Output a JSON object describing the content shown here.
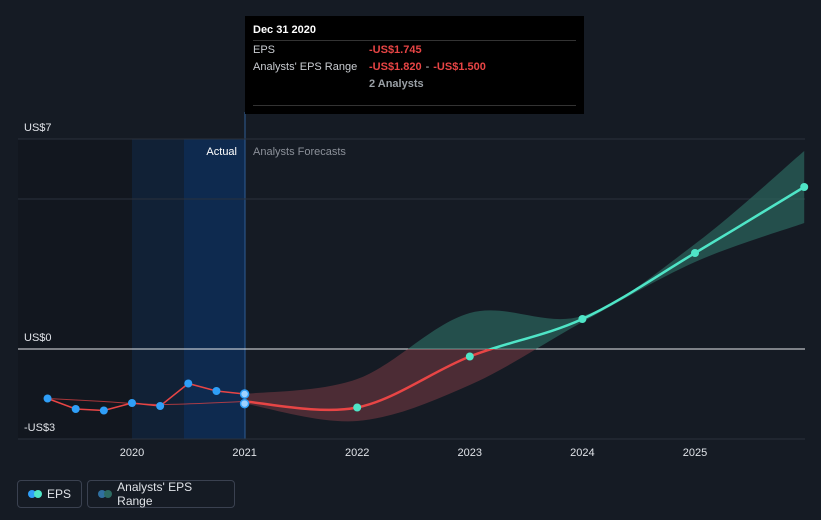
{
  "tooltip": {
    "date": "Dec 31 2020",
    "eps_label": "EPS",
    "eps_value": "-US$1.745",
    "range_label": "Analysts' EPS Range",
    "range_low": "-US$1.820",
    "range_sep": "-",
    "range_high": "-US$1.500",
    "analysts": "2 Analysts"
  },
  "labels": {
    "actual": "Actual",
    "forecast": "Analysts Forecasts"
  },
  "legend": {
    "eps": "EPS",
    "range": "Analysts' EPS Range"
  },
  "colors": {
    "background": "#151b24",
    "eps_actual": "#2f9ff8",
    "eps_past_line": "#e84545",
    "eps_forecast_negative": "#e84545",
    "eps_forecast_positive": "#4fe5c7",
    "range_negative": "#7a3a44",
    "range_positive": "#2d6b62",
    "highlight": "#0e2a4f"
  },
  "chart_data": {
    "type": "line",
    "title": "",
    "y_ticks": [
      {
        "value": 7,
        "label": "US$7"
      },
      {
        "value": 0,
        "label": "US$0"
      },
      {
        "value": -3,
        "label": "-US$3"
      }
    ],
    "ylim": [
      -3,
      7
    ],
    "xlim": [
      2019.1,
      2025.97
    ],
    "x_ticks": [
      {
        "value": 2020,
        "label": "2020"
      },
      {
        "value": 2021,
        "label": "2021"
      },
      {
        "value": 2022,
        "label": "2022"
      },
      {
        "value": 2023,
        "label": "2023"
      },
      {
        "value": 2024,
        "label": "2024"
      },
      {
        "value": 2025,
        "label": "2025"
      }
    ],
    "actual_eps": {
      "name": "EPS",
      "points": [
        {
          "x": 2019.25,
          "y": -1.65
        },
        {
          "x": 2019.5,
          "y": -2.0
        },
        {
          "x": 2019.75,
          "y": -2.05
        },
        {
          "x": 2020.0,
          "y": -1.8
        },
        {
          "x": 2020.25,
          "y": -1.9
        },
        {
          "x": 2020.5,
          "y": -1.15
        },
        {
          "x": 2020.75,
          "y": -1.4
        },
        {
          "x": 2021.0,
          "y": -1.5
        },
        {
          "x": 2021.0,
          "y": -1.82
        }
      ]
    },
    "past_estimate_line": [
      {
        "x": 2019.25,
        "y": -1.65
      },
      {
        "x": 2019.75,
        "y": -1.75
      },
      {
        "x": 2020.25,
        "y": -1.85
      },
      {
        "x": 2021.0,
        "y": -1.75
      }
    ],
    "forecast_eps": {
      "name": "EPS Forecast",
      "points": [
        {
          "x": 2021.0,
          "y": -1.75,
          "marker": false
        },
        {
          "x": 2022.0,
          "y": -1.95,
          "marker": true
        },
        {
          "x": 2023.0,
          "y": -0.25,
          "marker": true
        },
        {
          "x": 2024.0,
          "y": 1.0,
          "marker": true
        },
        {
          "x": 2025.0,
          "y": 3.2,
          "marker": true
        },
        {
          "x": 2025.97,
          "y": 5.4,
          "marker": true
        }
      ]
    },
    "forecast_range": {
      "name": "Analysts' EPS Range",
      "upper": [
        {
          "x": 2021.0,
          "y": -1.5
        },
        {
          "x": 2022.0,
          "y": -1.0
        },
        {
          "x": 2023.0,
          "y": 1.2
        },
        {
          "x": 2024.0,
          "y": 1.1
        },
        {
          "x": 2025.0,
          "y": 3.5
        },
        {
          "x": 2025.97,
          "y": 6.6
        }
      ],
      "lower": [
        {
          "x": 2021.0,
          "y": -1.82
        },
        {
          "x": 2022.0,
          "y": -2.4
        },
        {
          "x": 2023.0,
          "y": -1.2
        },
        {
          "x": 2024.0,
          "y": 0.9
        },
        {
          "x": 2025.0,
          "y": 2.9
        },
        {
          "x": 2025.97,
          "y": 4.2
        }
      ]
    }
  }
}
